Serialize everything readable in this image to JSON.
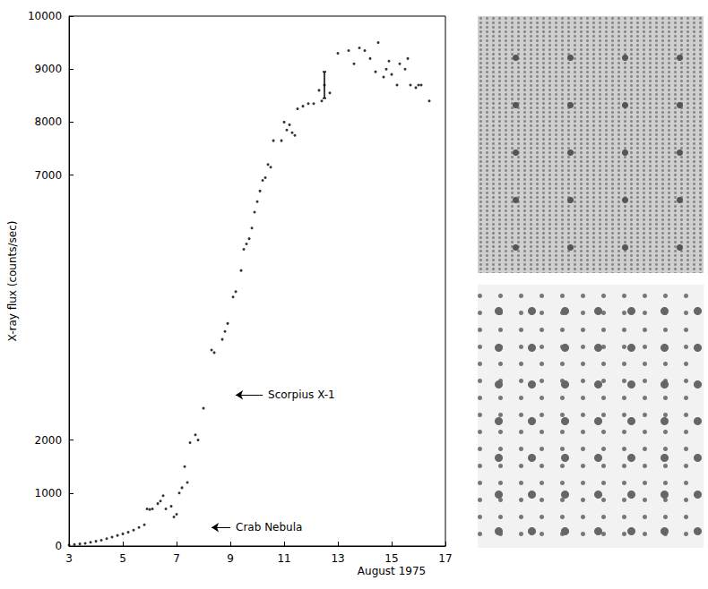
{
  "chart_data": {
    "type": "scatter",
    "x_label": "August 1975",
    "y_label": "X-ray flux (counts/sec)",
    "xlim": [
      3,
      17
    ],
    "xticks": [
      3,
      5,
      7,
      9,
      11,
      13,
      15,
      17
    ],
    "ylim": [
      0,
      10000
    ],
    "yticks": [
      0,
      1000,
      2000,
      7000,
      8000,
      9000,
      10000
    ],
    "grid": false,
    "color": "#000000",
    "marker": "circle",
    "x": [
      3.0,
      3.2,
      3.4,
      3.6,
      3.8,
      4.0,
      4.2,
      4.4,
      4.6,
      4.8,
      5.0,
      5.2,
      5.4,
      5.6,
      5.8,
      5.9,
      6.0,
      6.1,
      6.3,
      6.4,
      6.5,
      6.6,
      6.8,
      6.9,
      7.0,
      7.1,
      7.2,
      7.3,
      7.4,
      7.5,
      7.7,
      7.8,
      8.0,
      8.3,
      8.4,
      8.7,
      8.8,
      8.9,
      9.1,
      9.2,
      9.4,
      9.5,
      9.6,
      9.7,
      9.8,
      9.9,
      10.0,
      10.1,
      10.2,
      10.3,
      10.4,
      10.5,
      10.6,
      10.9,
      11.0,
      11.1,
      11.2,
      11.3,
      11.4,
      11.5,
      11.7,
      11.9,
      12.1,
      12.3,
      12.4,
      12.5,
      12.7,
      13.0,
      13.4,
      13.6,
      13.8,
      14.0,
      14.2,
      14.4,
      14.5,
      14.7,
      14.8,
      14.9,
      15.0,
      15.2,
      15.3,
      15.5,
      15.6,
      15.7,
      15.9,
      16.0,
      16.1,
      16.4
    ],
    "values": [
      20,
      30,
      40,
      50,
      70,
      90,
      110,
      140,
      170,
      200,
      230,
      260,
      300,
      350,
      400,
      700,
      690,
      700,
      800,
      850,
      950,
      700,
      750,
      550,
      600,
      1000,
      1100,
      1500,
      1200,
      1950,
      2100,
      2000,
      2600,
      3700,
      3650,
      3900,
      4050,
      4200,
      4700,
      4800,
      5200,
      5600,
      5700,
      5800,
      6000,
      6300,
      6500,
      6700,
      6900,
      6950,
      7200,
      7150,
      7650,
      7650,
      8000,
      7850,
      7950,
      7800,
      7750,
      8250,
      8300,
      8350,
      8350,
      8600,
      8400,
      8700,
      8550,
      9300,
      9350,
      9100,
      9400,
      9350,
      9200,
      8950,
      9500,
      8850,
      9000,
      9150,
      8900,
      8700,
      9100,
      9000,
      9200,
      8700,
      8650,
      8700,
      8700,
      8400
    ],
    "error_bars": [
      {
        "x": 12.5,
        "low": 8450,
        "high": 8950
      }
    ],
    "annotations": [
      {
        "text": "Scorpius X-1",
        "x": 9.2,
        "y": 2850,
        "text_x": 10.2
      },
      {
        "text": "Crab Nebula",
        "x": 8.3,
        "y": 350,
        "text_x": 9.0
      }
    ]
  }
}
